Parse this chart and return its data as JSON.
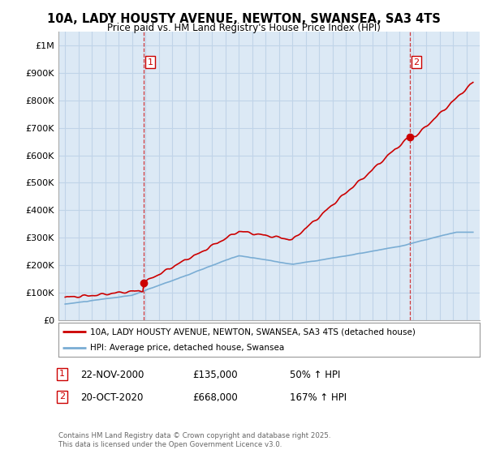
{
  "title_line1": "10A, LADY HOUSTY AVENUE, NEWTON, SWANSEA, SA3 4TS",
  "title_line2": "Price paid vs. HM Land Registry's House Price Index (HPI)",
  "background_color": "#dce9f5",
  "ylim": [
    0,
    1050000
  ],
  "yticks": [
    0,
    100000,
    200000,
    300000,
    400000,
    500000,
    600000,
    700000,
    800000,
    900000,
    1000000
  ],
  "ytick_labels": [
    "£0",
    "£100K",
    "£200K",
    "£300K",
    "£400K",
    "£500K",
    "£600K",
    "£700K",
    "£800K",
    "£900K",
    "£1M"
  ],
  "xmin": 1994.5,
  "xmax": 2026.0,
  "legend_line1": "10A, LADY HOUSTY AVENUE, NEWTON, SWANSEA, SA3 4TS (detached house)",
  "legend_line2": "HPI: Average price, detached house, Swansea",
  "sale1_x": 2000.9,
  "sale1_y": 135000,
  "sale2_x": 2020.8,
  "sale2_y": 668000,
  "footnote": "Contains HM Land Registry data © Crown copyright and database right 2025.\nThis data is licensed under the Open Government Licence v3.0.",
  "red_line_color": "#cc0000",
  "blue_line_color": "#7aadd4",
  "grid_color": "#c0d4e8"
}
